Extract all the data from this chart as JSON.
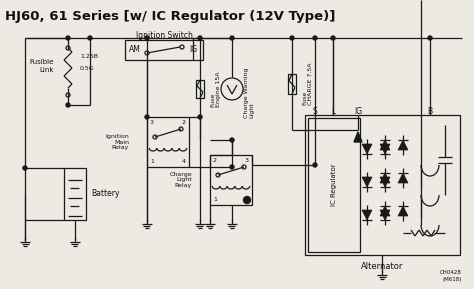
{
  "title": "HJ60, 61 Series [w/ IC Regulator (12V Type)]",
  "title_fontsize": 11,
  "bg_color": "#ede9e3",
  "line_color": "#1a1a1a",
  "text_color": "#111111",
  "figsize": [
    4.74,
    2.89
  ],
  "dpi": 100,
  "labels": {
    "fusible_link": "Fusible\nLink",
    "battery": "Battery",
    "ignition_switch": "Ignition Switch",
    "am": "AM",
    "ig_sw": "IG",
    "ignition_main_relay": "Ignition\nMain\nRelay",
    "fuse_engine": "Fuse\nEngine 15A",
    "charge_warning": "Charge Warning\nLight",
    "charge_light_relay": "Charge\nLight\nRelay",
    "fuse_charge": "Fuse\nCHARGE 7.5A",
    "ic_regulator": "IC Regulator",
    "alternator": "Alternator",
    "s_label": "S",
    "l_label": "L",
    "ig_label": "IG",
    "b_label": "B",
    "wire_125b": "1.25B",
    "wire_05g": "0.5G",
    "ref1": "CH0428",
    "ref2": "(M618)"
  }
}
